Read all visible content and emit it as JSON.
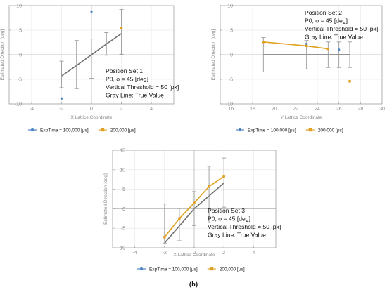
{
  "caption": "(b)",
  "colors": {
    "gray_line": "#6e6e6e",
    "exp100": "#4f86c6",
    "exp200": "#e0a020",
    "error_bar": "#9a9a9a",
    "grid": "#e6e6e6",
    "frame": "#a0a0a0"
  },
  "chart_data": [
    {
      "type": "line",
      "xlabel": "X Lattice Coordinate",
      "ylabel": "Estimated Direction [deg]",
      "xlim": [
        -5.5,
        5.5
      ],
      "ylim": [
        -10,
        10
      ],
      "xticks": [
        -4,
        -2,
        0,
        2,
        4
      ],
      "yticks": [
        -10,
        -5,
        0,
        5,
        10
      ],
      "grid": true,
      "annotation": [
        "Position Set 1",
        "P0, ϕ = 45 [deg]",
        "Vertical Threshold = 50 [px]",
        "Gray Line: True Value"
      ],
      "true_value": {
        "x": [
          -2,
          -1,
          0,
          1,
          2
        ],
        "y": [
          -4.3,
          -2.2,
          0,
          2.2,
          4.3
        ]
      },
      "error_bars": [
        {
          "x": -2,
          "low": -6.7,
          "high": -1.3
        },
        {
          "x": -1,
          "low": -6.9,
          "high": 2.9
        },
        {
          "x": 0,
          "low": -4.8,
          "high": 3.2
        },
        {
          "x": 1,
          "low": -0.1,
          "high": 4.5
        },
        {
          "x": 2,
          "low": 0.1,
          "high": 9.2
        }
      ],
      "series": [
        {
          "name": "ExpTime = 100,000 [μs]",
          "x": [
            -2,
            0
          ],
          "y": [
            -8.9,
            8.8
          ]
        },
        {
          "name": "200,000 [μs]",
          "x": [
            2
          ],
          "y": [
            5.4
          ]
        }
      ]
    },
    {
      "type": "line",
      "xlabel": "Y Lattice Coordinate",
      "ylabel": "Estimated Direction [deg]",
      "xlim": [
        15,
        30
      ],
      "ylim": [
        -10,
        10
      ],
      "xticks": [
        16,
        18,
        20,
        22,
        24,
        26,
        28,
        30
      ],
      "yticks": [
        -10,
        -5,
        0,
        5,
        10
      ],
      "grid": true,
      "annotation": [
        "Position Set 2",
        "P0, ϕ = 45 [deg]",
        "Vertical Threshold = 50 [px]",
        "Gray Line: True Value"
      ],
      "true_value": {
        "x": [
          19,
          23,
          25,
          26,
          27
        ],
        "y": [
          0,
          0,
          0,
          0,
          0
        ]
      },
      "error_bars": [
        {
          "x": 19,
          "low": -3.5,
          "high": 3.5
        },
        {
          "x": 23,
          "low": -2.9,
          "high": 2.9
        },
        {
          "x": 25,
          "low": -2.6,
          "high": 2.6
        },
        {
          "x": 26,
          "low": -2.6,
          "high": 2.6
        },
        {
          "x": 27,
          "low": -2.6,
          "high": 2.6
        }
      ],
      "series": [
        {
          "name": "ExpTime = 100,000 [μs]",
          "x": [
            23,
            26
          ],
          "y": [
            2.2,
            1.0
          ]
        },
        {
          "name": "200,000 [μs]",
          "x": [
            19,
            23,
            25,
            27
          ],
          "y": [
            2.6,
            1.8,
            1.2,
            -5.4
          ]
        }
      ],
      "series_lines": [
        {
          "series": 1,
          "points": 3
        }
      ]
    },
    {
      "type": "line",
      "xlabel": "X Lattice Coordinate",
      "ylabel": "Estimated Direction [deg]",
      "xlim": [
        -5.5,
        5.5
      ],
      "ylim": [
        -10,
        15
      ],
      "xticks": [
        -4,
        -2,
        0,
        2,
        4
      ],
      "yticks": [
        -10,
        -5,
        0,
        5,
        10,
        15
      ],
      "grid": true,
      "annotation": [
        "Position Set 3",
        "P0, ϕ = 45 [deg]",
        "Vertical Threshold = 50 [px]",
        "Gray Line: True Value"
      ],
      "true_value": {
        "x": [
          -2,
          -1,
          0,
          1,
          2
        ],
        "y": [
          -8.8,
          -4.4,
          0,
          3.3,
          6.6
        ]
      },
      "error_bars": [
        {
          "x": -2,
          "low": -8.8,
          "high": 1.2
        },
        {
          "x": -1,
          "low": -8.2,
          "high": 0.1
        },
        {
          "x": 0,
          "low": -4.3,
          "high": 4.4
        },
        {
          "x": 1,
          "low": -3.6,
          "high": 10.9
        },
        {
          "x": 2,
          "low": 0.4,
          "high": 13.0
        }
      ],
      "series": [
        {
          "name": "ExpTime = 100,000 [μs]",
          "x": [],
          "y": []
        },
        {
          "name": "200,000 [μs]",
          "x": [
            -2,
            -1,
            0,
            1,
            2
          ],
          "y": [
            -7.3,
            -2.5,
            1.5,
            5.7,
            8.3
          ]
        }
      ],
      "series_lines": [
        {
          "series": 1,
          "points": 5
        }
      ]
    }
  ]
}
